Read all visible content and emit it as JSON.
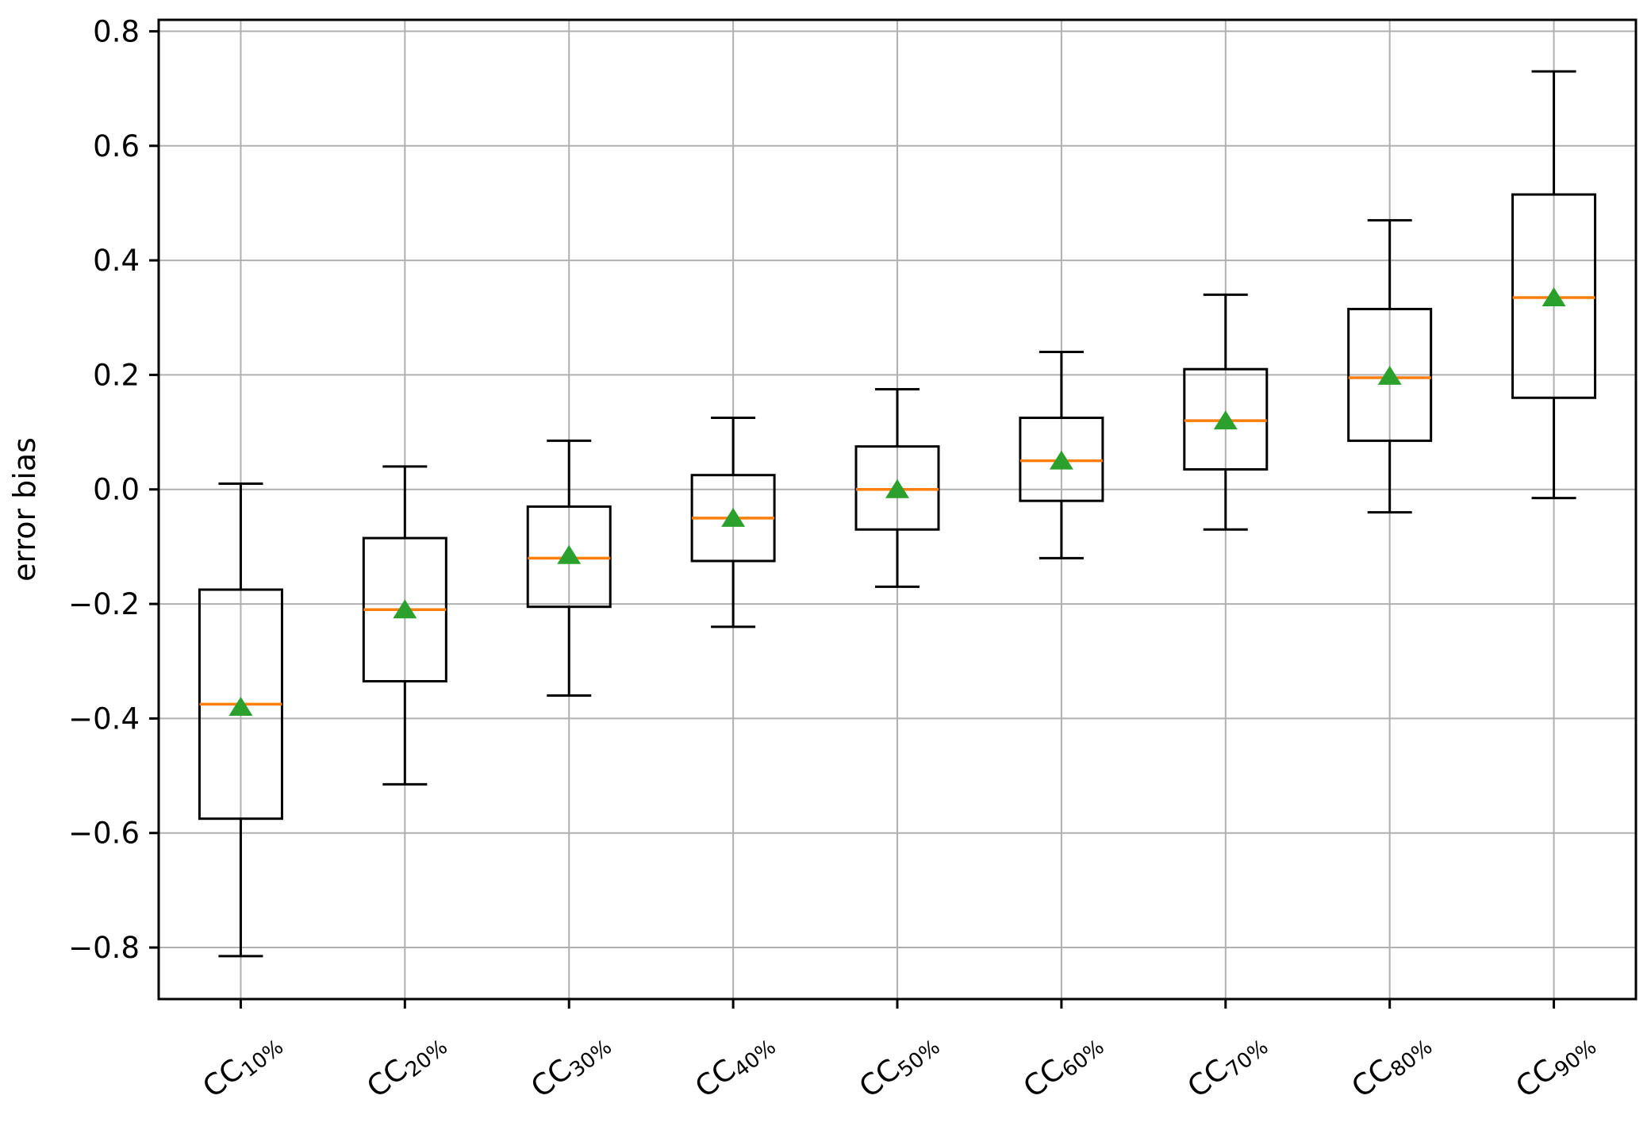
{
  "chart_data": {
    "type": "boxplot",
    "title": "",
    "xlabel": "",
    "ylabel": "error bias",
    "ylim": [
      -0.89,
      0.82
    ],
    "grid": true,
    "legend": "none",
    "yticks": [
      {
        "value": -0.8,
        "label": "−0.8"
      },
      {
        "value": -0.6,
        "label": "−0.6"
      },
      {
        "value": -0.4,
        "label": "−0.4"
      },
      {
        "value": -0.2,
        "label": "−0.2"
      },
      {
        "value": 0.0,
        "label": "0.0"
      },
      {
        "value": 0.2,
        "label": "0.2"
      },
      {
        "value": 0.4,
        "label": "0.4"
      },
      {
        "value": 0.6,
        "label": "0.6"
      },
      {
        "value": 0.8,
        "label": "0.8"
      }
    ],
    "categories": [
      {
        "base": "CC",
        "sub": "10%"
      },
      {
        "base": "CC",
        "sub": "20%"
      },
      {
        "base": "CC",
        "sub": "30%"
      },
      {
        "base": "CC",
        "sub": "40%"
      },
      {
        "base": "CC",
        "sub": "50%"
      },
      {
        "base": "CC",
        "sub": "60%"
      },
      {
        "base": "CC",
        "sub": "70%"
      },
      {
        "base": "CC",
        "sub": "80%"
      },
      {
        "base": "CC",
        "sub": "90%"
      }
    ],
    "series": [
      {
        "name": "CC 10%",
        "whisker_low": -0.815,
        "q1": -0.575,
        "median": -0.375,
        "mean": -0.38,
        "q3": -0.175,
        "whisker_high": 0.01
      },
      {
        "name": "CC 20%",
        "whisker_low": -0.515,
        "q1": -0.335,
        "median": -0.21,
        "mean": -0.21,
        "q3": -0.085,
        "whisker_high": 0.04
      },
      {
        "name": "CC 30%",
        "whisker_low": -0.36,
        "q1": -0.205,
        "median": -0.12,
        "mean": -0.115,
        "q3": -0.03,
        "whisker_high": 0.085
      },
      {
        "name": "CC 40%",
        "whisker_low": -0.24,
        "q1": -0.125,
        "median": -0.05,
        "mean": -0.05,
        "q3": 0.025,
        "whisker_high": 0.125
      },
      {
        "name": "CC 50%",
        "whisker_low": -0.17,
        "q1": -0.07,
        "median": 0.0,
        "mean": 0.0,
        "q3": 0.075,
        "whisker_high": 0.175
      },
      {
        "name": "CC 60%",
        "whisker_low": -0.12,
        "q1": -0.02,
        "median": 0.05,
        "mean": 0.05,
        "q3": 0.125,
        "whisker_high": 0.24
      },
      {
        "name": "CC 70%",
        "whisker_low": -0.07,
        "q1": 0.035,
        "median": 0.12,
        "mean": 0.12,
        "q3": 0.21,
        "whisker_high": 0.34
      },
      {
        "name": "CC 80%",
        "whisker_low": -0.04,
        "q1": 0.085,
        "median": 0.195,
        "mean": 0.198,
        "q3": 0.315,
        "whisker_high": 0.47
      },
      {
        "name": "CC 90%",
        "whisker_low": -0.015,
        "q1": 0.16,
        "median": 0.335,
        "mean": 0.335,
        "q3": 0.515,
        "whisker_high": 0.73
      }
    ],
    "colors": {
      "box_edge": "#000000",
      "median": "#ff7f0e",
      "mean_marker": "#2ca02c",
      "grid": "#b0b0b0",
      "background": "#ffffff"
    },
    "marker": {
      "mean_shape": "triangle-up"
    }
  }
}
